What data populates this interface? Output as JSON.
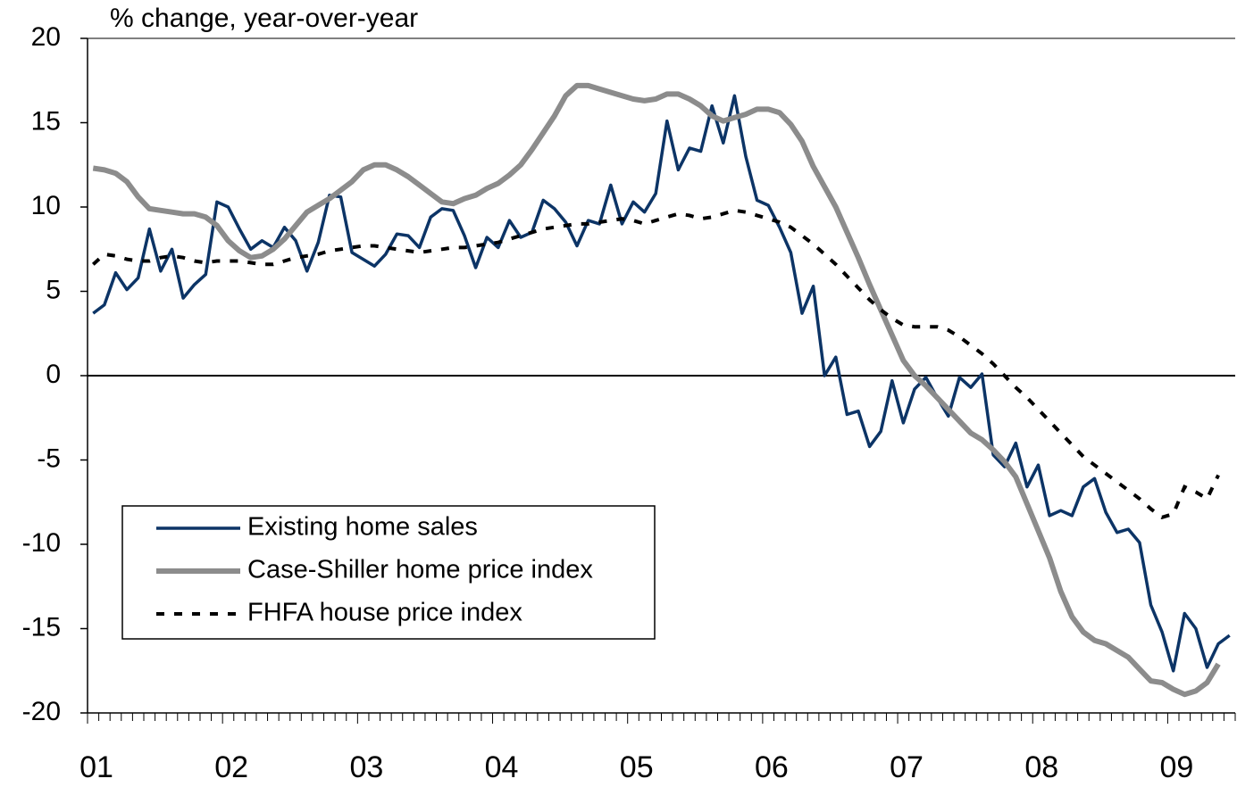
{
  "chart_data": {
    "type": "line",
    "y_label": "% change, year-over-year",
    "categories": [
      "01",
      null,
      null,
      null,
      null,
      null,
      null,
      null,
      null,
      null,
      null,
      null,
      "02",
      null,
      null,
      null,
      null,
      null,
      null,
      null,
      null,
      null,
      null,
      null,
      "03",
      null,
      null,
      null,
      null,
      null,
      null,
      null,
      null,
      null,
      null,
      null,
      "04",
      null,
      null,
      null,
      null,
      null,
      null,
      null,
      null,
      null,
      null,
      null,
      "05",
      null,
      null,
      null,
      null,
      null,
      null,
      null,
      null,
      null,
      null,
      null,
      "06",
      null,
      null,
      null,
      null,
      null,
      null,
      null,
      null,
      null,
      null,
      null,
      "07",
      null,
      null,
      null,
      null,
      null,
      null,
      null,
      null,
      null,
      null,
      null,
      "08",
      null,
      null,
      null,
      null,
      null,
      null,
      null,
      null,
      null,
      null,
      null,
      "09",
      null,
      null,
      null,
      null,
      null
    ],
    "series": [
      {
        "name": "Existing home sales",
        "color": "#0c3466",
        "style": "solid",
        "values": [
          3.7,
          4.2,
          6.1,
          5.1,
          5.8,
          8.7,
          6.2,
          7.5,
          4.6,
          5.4,
          6.0,
          10.3,
          10.0,
          8.7,
          7.5,
          8.0,
          7.6,
          8.8,
          8.0,
          6.2,
          7.9,
          10.7,
          10.6,
          7.3,
          6.9,
          6.5,
          7.2,
          8.4,
          8.3,
          7.6,
          9.4,
          9.9,
          9.8,
          8.3,
          6.4,
          8.2,
          7.6,
          9.2,
          8.2,
          8.5,
          10.4,
          9.9,
          9.1,
          7.7,
          9.2,
          9.0,
          11.3,
          9.0,
          10.3,
          9.7,
          10.8,
          15.1,
          12.2,
          13.5,
          13.3,
          16.0,
          13.8,
          16.6,
          13.0,
          10.4,
          10.1,
          8.8,
          7.3,
          3.7,
          5.3,
          0.0,
          1.1,
          -2.3,
          -2.1,
          -4.2,
          -3.3,
          -0.3,
          -2.8,
          -0.8,
          -0.1,
          -1.3,
          -2.4,
          -0.1,
          -0.7,
          0.1,
          -4.7,
          -5.4,
          -4.0,
          -6.6,
          -5.3,
          -8.3,
          -8.0,
          -8.3,
          -6.6,
          -6.1,
          -8.1,
          -9.3,
          -9.1,
          -9.9,
          -13.6,
          -15.2,
          -17.5,
          -14.1,
          -15.0,
          -17.3,
          -15.9,
          -15.4
        ]
      },
      {
        "name": "Case-Shiller home price index",
        "color": "#8c8c8c",
        "style": "solid",
        "values": [
          12.3,
          12.2,
          12.0,
          11.5,
          10.6,
          9.9,
          9.8,
          9.7,
          9.6,
          9.6,
          9.4,
          8.9,
          8.0,
          7.4,
          7.0,
          7.1,
          7.5,
          8.1,
          8.9,
          9.7,
          10.1,
          10.5,
          11.0,
          11.5,
          12.2,
          12.5,
          12.5,
          12.2,
          11.8,
          11.3,
          10.8,
          10.3,
          10.2,
          10.5,
          10.7,
          11.1,
          11.4,
          11.9,
          12.5,
          13.4,
          14.4,
          15.4,
          16.6,
          17.2,
          17.2,
          17.0,
          16.8,
          16.6,
          16.4,
          16.3,
          16.4,
          16.7,
          16.7,
          16.4,
          16.0,
          15.4,
          15.1,
          15.3,
          15.5,
          15.8,
          15.8,
          15.6,
          14.9,
          13.9,
          12.4,
          11.2,
          10.0,
          8.5,
          7.0,
          5.4,
          3.9,
          2.4,
          0.9,
          0.0,
          -0.6,
          -1.3,
          -2.0,
          -2.7,
          -3.4,
          -3.8,
          -4.4,
          -5.1,
          -6.0,
          -7.6,
          -9.2,
          -10.8,
          -12.8,
          -14.3,
          -15.2,
          -15.7,
          -15.9,
          -16.3,
          -16.7,
          -17.4,
          -18.1,
          -18.2,
          -18.6,
          -18.9,
          -18.7,
          -18.2,
          -17.1,
          null
        ]
      },
      {
        "name": "FHFA house price index",
        "color": "#000000",
        "style": "dotted",
        "values": [
          6.6,
          7.2,
          7.1,
          6.9,
          6.8,
          6.8,
          7.0,
          7.1,
          7.0,
          6.8,
          6.7,
          6.8,
          6.8,
          6.8,
          6.7,
          6.6,
          6.6,
          6.8,
          7.0,
          7.1,
          7.2,
          7.4,
          7.5,
          7.6,
          7.7,
          7.7,
          7.6,
          7.5,
          7.4,
          7.3,
          7.4,
          7.5,
          7.6,
          7.6,
          7.7,
          7.8,
          7.9,
          8.1,
          8.3,
          8.5,
          8.7,
          8.8,
          8.9,
          9.0,
          9.0,
          9.1,
          9.2,
          9.3,
          9.2,
          9.0,
          9.2,
          9.4,
          9.6,
          9.5,
          9.3,
          9.4,
          9.6,
          9.8,
          9.7,
          9.5,
          9.3,
          9.1,
          8.8,
          8.3,
          7.8,
          7.2,
          6.6,
          5.9,
          5.2,
          4.5,
          3.9,
          3.4,
          3.0,
          2.9,
          2.9,
          2.9,
          2.7,
          2.3,
          1.8,
          1.3,
          0.7,
          0.0,
          -0.7,
          -1.3,
          -2.0,
          -2.7,
          -3.4,
          -4.1,
          -4.8,
          -5.3,
          -5.8,
          -6.3,
          -6.8,
          -7.3,
          -7.9,
          -8.4,
          -8.2,
          -6.6,
          -6.9,
          -7.3,
          -5.9,
          null
        ]
      }
    ],
    "ylim": [
      -20,
      20
    ],
    "yticks": [
      -20,
      -15,
      -10,
      -5,
      0,
      5,
      10,
      15,
      20
    ],
    "legend": "lower left",
    "zero_line": true
  }
}
